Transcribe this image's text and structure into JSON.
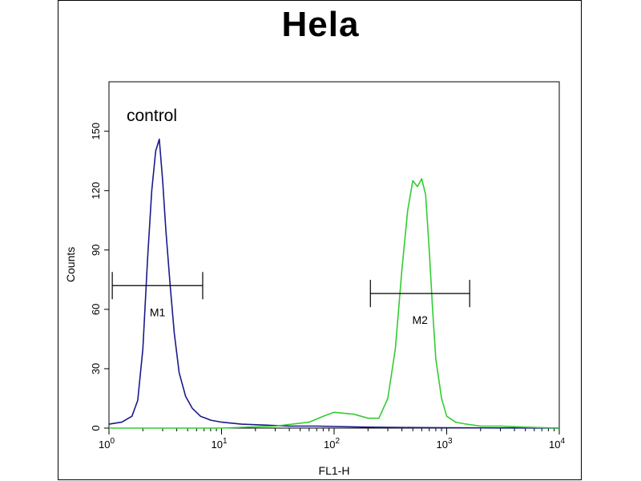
{
  "chart_data": {
    "type": "line",
    "title": "Hela",
    "xlabel": "FL1-H",
    "ylabel": "Counts",
    "x_scale": "log",
    "xlim": [
      1,
      10000
    ],
    "ylim": [
      0,
      175
    ],
    "x_ticks": [
      {
        "value": 1,
        "base": "10",
        "exp": "0"
      },
      {
        "value": 10,
        "base": "10",
        "exp": "1"
      },
      {
        "value": 100,
        "base": "10",
        "exp": "2"
      },
      {
        "value": 1000,
        "base": "10",
        "exp": "3"
      },
      {
        "value": 10000,
        "base": "10",
        "exp": "4"
      }
    ],
    "y_ticks": [
      0,
      30,
      60,
      90,
      120,
      150
    ],
    "annotation": "control",
    "series": [
      {
        "color": "#1a1a8c",
        "x": [
          1,
          1.3,
          1.6,
          1.8,
          2.0,
          2.2,
          2.4,
          2.6,
          2.8,
          3.0,
          3.2,
          3.5,
          3.8,
          4.2,
          4.8,
          5.5,
          6.5,
          8,
          10,
          15,
          25,
          40,
          70,
          100,
          200,
          500,
          1000,
          3000,
          10000
        ],
        "y": [
          2,
          3,
          6,
          14,
          40,
          85,
          120,
          140,
          146,
          125,
          100,
          72,
          48,
          28,
          16,
          10,
          6,
          4,
          3,
          2,
          1.5,
          1,
          1,
          0.8,
          0.5,
          0.3,
          0.2,
          0.1,
          0
        ]
      },
      {
        "color": "#33cc33",
        "x": [
          1,
          10,
          30,
          60,
          80,
          100,
          150,
          200,
          250,
          300,
          350,
          400,
          450,
          500,
          550,
          600,
          650,
          700,
          750,
          800,
          900,
          1000,
          1200,
          1500,
          2000,
          3000,
          5000,
          10000
        ],
        "y": [
          0,
          0,
          1,
          3,
          6,
          8,
          7,
          5,
          5,
          15,
          40,
          80,
          110,
          125,
          122,
          126,
          118,
          90,
          60,
          35,
          15,
          6,
          3,
          2,
          1,
          1,
          0.5,
          0
        ]
      }
    ],
    "markers": [
      {
        "label": "M1",
        "x_start": 1.07,
        "x_end": 6.8,
        "y": 72
      },
      {
        "label": "M2",
        "x_start": 210,
        "x_end": 1600,
        "y": 68
      }
    ]
  }
}
